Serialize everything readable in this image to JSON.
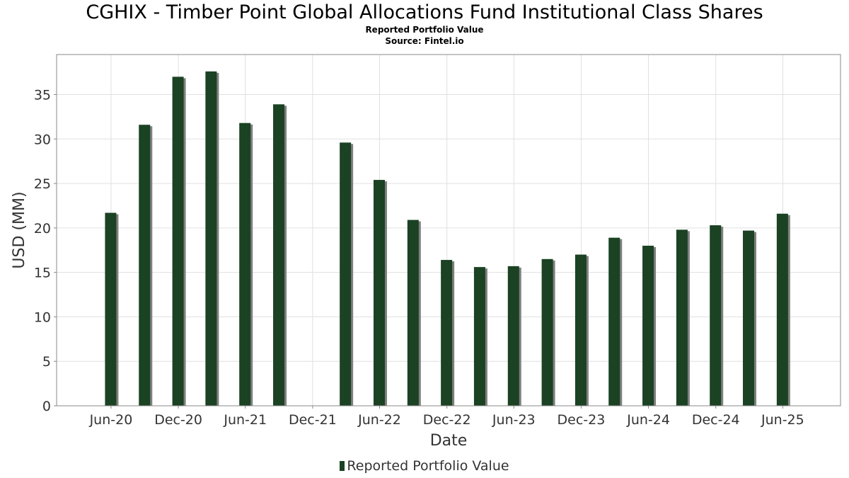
{
  "title": "CGHIX - Timber Point Global Allocations Fund Institutional Class Shares",
  "subtitle": "Reported Portfolio Value",
  "source": "Source: Fintel.io",
  "colors": {
    "bar": "#1a4223",
    "bar_shadow": "#808080",
    "grid": "#e0e0e0",
    "axis": "#888888"
  },
  "chart_data": {
    "type": "bar",
    "xlabel": "Date",
    "ylabel": "USD (MM)",
    "ylim": [
      0,
      39.5
    ],
    "yticks": [
      0,
      5,
      10,
      15,
      20,
      25,
      30,
      35
    ],
    "xticks": [
      "Jun-20",
      "Dec-20",
      "Jun-21",
      "Dec-21",
      "Jun-22",
      "Dec-22",
      "Jun-23",
      "Dec-23",
      "Jun-24",
      "Dec-24",
      "Jun-25"
    ],
    "grid": true,
    "legend_position": "bottom",
    "series": [
      {
        "name": "Reported Portfolio Value",
        "points": [
          {
            "date": "2020-05-31",
            "value": 21.7
          },
          {
            "date": "2020-08-31",
            "value": 31.6
          },
          {
            "date": "2020-11-30",
            "value": 37.0
          },
          {
            "date": "2021-02-28",
            "value": 37.6
          },
          {
            "date": "2021-05-31",
            "value": 31.8
          },
          {
            "date": "2021-08-31",
            "value": 33.9
          },
          {
            "date": "2022-02-28",
            "value": 29.6
          },
          {
            "date": "2022-05-31",
            "value": 25.4
          },
          {
            "date": "2022-08-31",
            "value": 20.9
          },
          {
            "date": "2022-11-30",
            "value": 16.4
          },
          {
            "date": "2023-02-28",
            "value": 15.6
          },
          {
            "date": "2023-05-31",
            "value": 15.7
          },
          {
            "date": "2023-08-31",
            "value": 16.5
          },
          {
            "date": "2023-11-30",
            "value": 17.0
          },
          {
            "date": "2024-02-29",
            "value": 18.9
          },
          {
            "date": "2024-05-31",
            "value": 18.0
          },
          {
            "date": "2024-08-31",
            "value": 19.8
          },
          {
            "date": "2024-11-30",
            "value": 20.3
          },
          {
            "date": "2025-02-28",
            "value": 19.7
          },
          {
            "date": "2025-05-31",
            "value": 21.6
          }
        ]
      }
    ]
  }
}
